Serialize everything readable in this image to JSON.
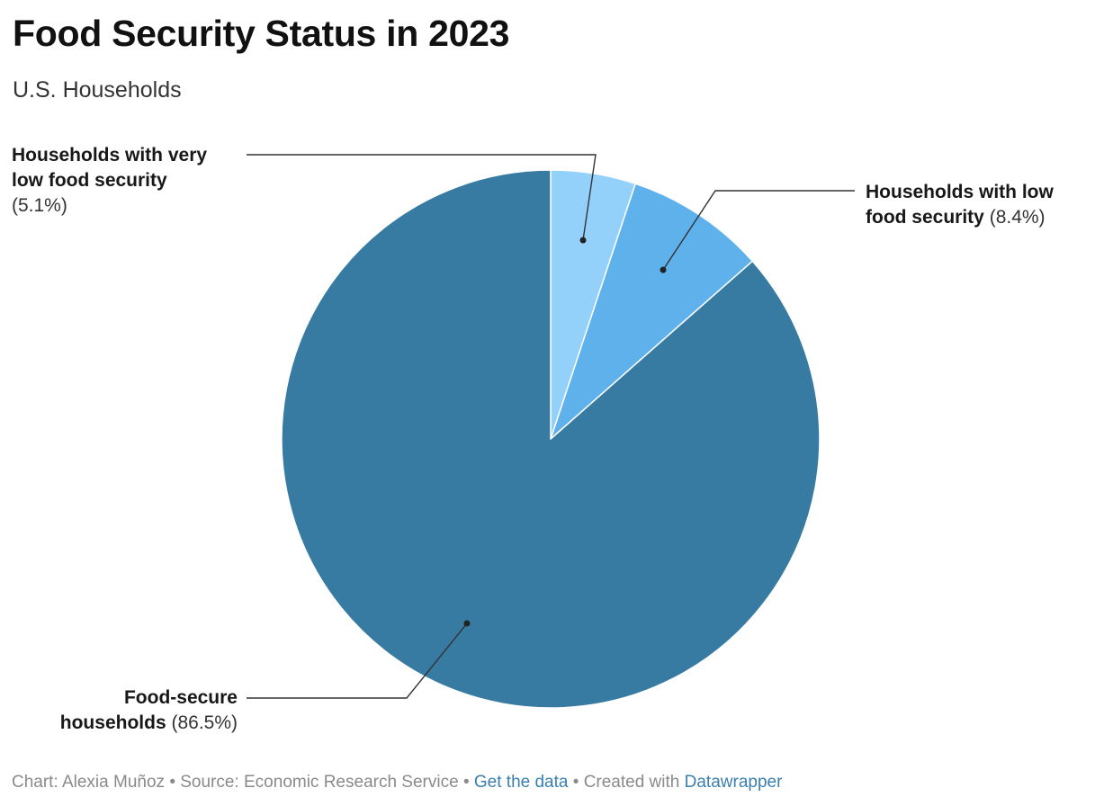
{
  "title": "Food Security Status in 2023",
  "subtitle": "U.S. Households",
  "chart_data": {
    "type": "pie",
    "title": "Food Security Status in 2023",
    "subtitle": "U.S. Households",
    "unit": "%",
    "slices": [
      {
        "label_line1": "Households with very",
        "label_line2": "low food security",
        "value": 5.1,
        "value_label": "(5.1%)",
        "color": "#93d0fa"
      },
      {
        "label_line1": "Households with low",
        "label_line2": "food security",
        "value": 8.4,
        "value_label": "(8.4%)",
        "color": "#5eb1ea"
      },
      {
        "label_line1": "Food-secure",
        "label_line2": "households",
        "value": 86.5,
        "value_label": "(86.5%)",
        "color": "#377ba3"
      }
    ]
  },
  "footer": {
    "chart_credit": "Chart: Alexia Muñoz",
    "separator": "•",
    "source": "Source: Economic Research Service",
    "get_data": "Get the data",
    "created_with": "Created with",
    "datawrapper": "Datawrapper"
  }
}
